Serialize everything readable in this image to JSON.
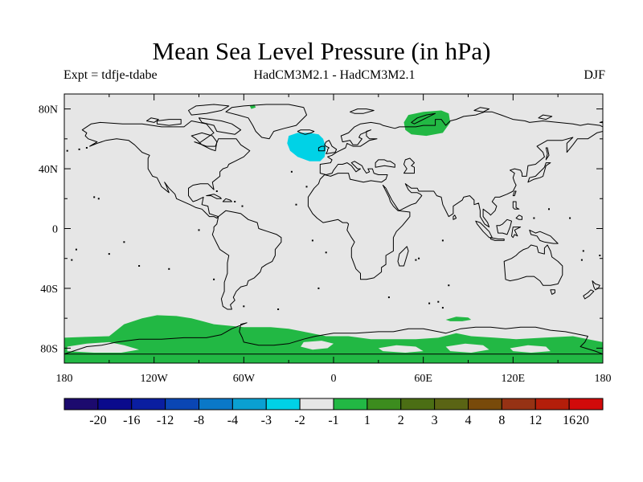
{
  "title": "Mean Sea Level Pressure (in hPa)",
  "left_subtitle": "Expt = tdfje-tdabe",
  "center_subtitle": "HadCM3M2.1 - HadCM3M2.1",
  "right_subtitle": "DJF",
  "map": {
    "projection": "cylindrical-equidistant",
    "lon_range": [
      -180,
      180
    ],
    "lat_range": [
      -90,
      90
    ],
    "background_color": "#e6e6e6",
    "coastline_color": "#000000",
    "y_ticks": [
      {
        "lat": 80,
        "label": "80N"
      },
      {
        "lat": 40,
        "label": "40N"
      },
      {
        "lat": 0,
        "label": "0"
      },
      {
        "lat": -40,
        "label": "40S"
      },
      {
        "lat": -80,
        "label": "80S"
      }
    ],
    "x_ticks": [
      {
        "lon": -180,
        "label": "180"
      },
      {
        "lon": -120,
        "label": "120W"
      },
      {
        "lon": -60,
        "label": "60W"
      },
      {
        "lon": 0,
        "label": "0"
      },
      {
        "lon": 60,
        "label": "60E"
      },
      {
        "lon": 120,
        "label": "120E"
      },
      {
        "lon": 180,
        "label": "180"
      }
    ],
    "anomaly_regions": [
      {
        "name": "north-atlantic-negative",
        "bin": "-2 to -1",
        "color": "#00d2e6",
        "lonlat": [
          [
            -30,
            62
          ],
          [
            -24,
            64
          ],
          [
            -16,
            64
          ],
          [
            -10,
            63
          ],
          [
            -7,
            60
          ],
          [
            -5,
            54
          ],
          [
            -6,
            48
          ],
          [
            -9,
            45
          ],
          [
            -16,
            45
          ],
          [
            -24,
            48
          ],
          [
            -29,
            52
          ],
          [
            -31,
            57
          ]
        ]
      },
      {
        "name": "siberia-positive",
        "bin": "1 to 2",
        "color": "#22b844",
        "lonlat": [
          [
            50,
            76
          ],
          [
            60,
            78
          ],
          [
            72,
            79
          ],
          [
            77,
            77
          ],
          [
            78,
            71
          ],
          [
            73,
            64
          ],
          [
            62,
            62
          ],
          [
            52,
            63
          ],
          [
            48,
            66
          ],
          [
            47,
            71
          ]
        ]
      },
      {
        "name": "greenland-positive",
        "bin": "1 to 2",
        "color": "#22b844",
        "lonlat": [
          [
            -56,
            82
          ],
          [
            -53,
            83
          ],
          [
            -52,
            81
          ],
          [
            -55,
            80
          ]
        ]
      },
      {
        "name": "southern-ocean-band-positive",
        "bin": "1 to 2",
        "color": "#22b844",
        "lonlat": [
          [
            -180,
            -73
          ],
          [
            -166,
            -72.5
          ],
          [
            -150,
            -72
          ],
          [
            -140,
            -64
          ],
          [
            -128,
            -60
          ],
          [
            -118,
            -58
          ],
          [
            -105,
            -58.5
          ],
          [
            -95,
            -60
          ],
          [
            -80,
            -64
          ],
          [
            -60,
            -66
          ],
          [
            -42,
            -66
          ],
          [
            -30,
            -67
          ],
          [
            -20,
            -69
          ],
          [
            -5,
            -72
          ],
          [
            10,
            -72
          ],
          [
            25,
            -74
          ],
          [
            40,
            -74
          ],
          [
            55,
            -74
          ],
          [
            70,
            -73
          ],
          [
            82,
            -70
          ],
          [
            92,
            -72
          ],
          [
            108,
            -73
          ],
          [
            122,
            -74
          ],
          [
            140,
            -73
          ],
          [
            160,
            -72
          ],
          [
            170,
            -74
          ],
          [
            180,
            -76
          ],
          [
            180,
            -90
          ],
          [
            -180,
            -90
          ]
        ]
      },
      {
        "name": "south-indian-ocean-positive",
        "bin": "1 to 2",
        "color": "#22b844",
        "lonlat": [
          [
            75,
            -61
          ],
          [
            82,
            -59
          ],
          [
            90,
            -59.5
          ],
          [
            92,
            -61
          ],
          [
            86,
            -62
          ],
          [
            78,
            -62
          ]
        ]
      }
    ],
    "gray_gaps": [
      {
        "name": "ross-sea-gap",
        "lonlat": [
          [
            -178,
            -79
          ],
          [
            -165,
            -77
          ],
          [
            -150,
            -76
          ],
          [
            -140,
            -78
          ],
          [
            -130,
            -81
          ],
          [
            -142,
            -83
          ],
          [
            -160,
            -83
          ],
          [
            -178,
            -82
          ]
        ]
      },
      {
        "name": "east-antarctic-gap-1",
        "lonlat": [
          [
            30,
            -80
          ],
          [
            42,
            -78
          ],
          [
            55,
            -79
          ],
          [
            60,
            -82
          ],
          [
            48,
            -83
          ],
          [
            33,
            -82
          ]
        ]
      },
      {
        "name": "east-antarctic-gap-2",
        "lonlat": [
          [
            75,
            -79
          ],
          [
            88,
            -77
          ],
          [
            100,
            -78
          ],
          [
            104,
            -81
          ],
          [
            92,
            -83
          ],
          [
            78,
            -82
          ]
        ]
      },
      {
        "name": "east-antarctic-gap-3",
        "lonlat": [
          [
            118,
            -80
          ],
          [
            130,
            -78
          ],
          [
            142,
            -79
          ],
          [
            145,
            -82
          ],
          [
            132,
            -83
          ],
          [
            120,
            -82
          ]
        ]
      },
      {
        "name": "weddell-gap",
        "lonlat": [
          [
            -20,
            -76
          ],
          [
            -8,
            -75
          ],
          [
            0,
            -77
          ],
          [
            -4,
            -80
          ],
          [
            -14,
            -81
          ],
          [
            -22,
            -79
          ]
        ]
      }
    ]
  },
  "colorbar": {
    "colors": [
      "#1c0a6e",
      "#0a0a8c",
      "#0a1ea0",
      "#0a46b4",
      "#0a78c8",
      "#0aa0d2",
      "#00d2e6",
      "#e6e6e6",
      "#22b844",
      "#3c8c1e",
      "#4b6e14",
      "#5a6414",
      "#784a0a",
      "#963214",
      "#b41e0a",
      "#d20a0a"
    ],
    "labels": [
      "-20",
      "-16",
      "-12",
      "-8",
      "-4",
      "-3",
      "-2",
      "-1",
      "1",
      "2",
      "3",
      "4",
      "8",
      "12",
      "16",
      "20"
    ]
  }
}
